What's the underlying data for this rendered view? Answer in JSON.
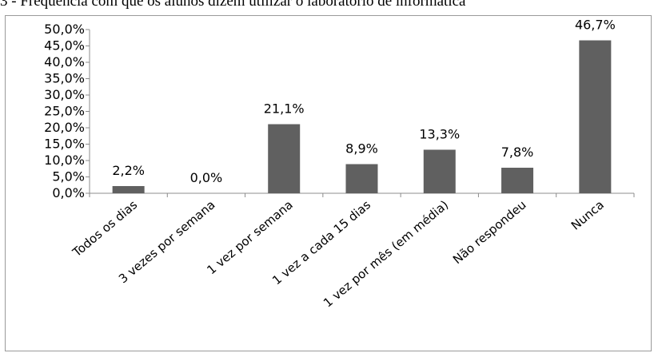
{
  "page_title": "3 - Frequência com que os alunos dizem utilizar o laboratório de informática",
  "colors": {
    "bar": "#606060",
    "axis": "#8c8c8c"
  },
  "chart_data": {
    "type": "bar",
    "title": "3 - Frequência com que os alunos dizem utilizar o laboratório de informática",
    "xlabel": "",
    "ylabel": "",
    "categories": [
      "Todos os dias",
      "3 vezes por semana",
      "1 vez por semana",
      "1 vez a cada 15 dias",
      "1 vez por mês (em média)",
      "Não respondeu",
      "Nunca"
    ],
    "values": [
      2.2,
      0.0,
      21.1,
      8.9,
      13.3,
      7.8,
      46.7
    ],
    "data_labels": [
      "2,2%",
      "0,0%",
      "21,1%",
      "8,9%",
      "13,3%",
      "7,8%",
      "46,7%"
    ],
    "ylim": [
      0,
      50
    ],
    "yticks": [
      0,
      5,
      10,
      15,
      20,
      25,
      30,
      35,
      40,
      45,
      50
    ],
    "ytick_labels": [
      "0,0%",
      "5,0%",
      "10,0%",
      "15,0%",
      "20,0%",
      "25,0%",
      "30,0%",
      "35,0%",
      "40,0%",
      "45,0%",
      "50,0%"
    ],
    "grid": false,
    "legend": "none"
  }
}
